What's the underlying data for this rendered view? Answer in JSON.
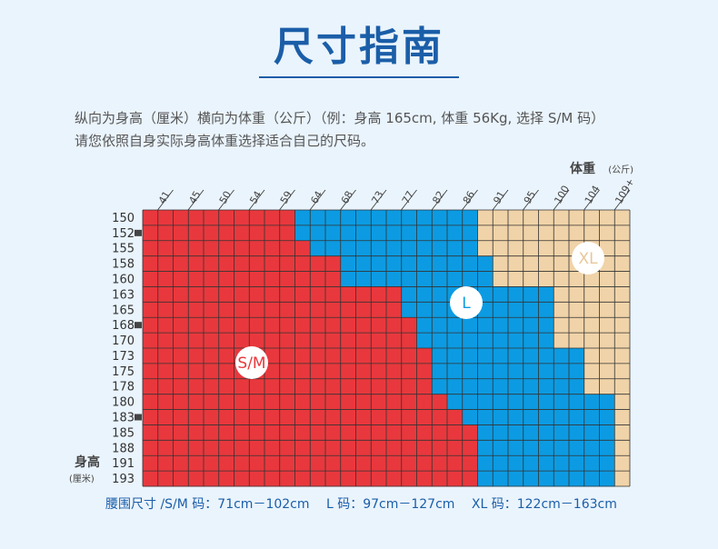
{
  "page": {
    "title": "尺寸指南",
    "desc_line1": "纵向为身高（厘米）横向为体重（公斤）（例：身高 165cm, 体重 56Kg, 选择 S/M 码）",
    "desc_line2": "请您依照自身实际身高体重选择适合自己的尺码。"
  },
  "chart_data": {
    "type": "heatmap",
    "x_axis_label": "体重",
    "x_axis_unit": "(公斤)",
    "y_axis_label": "身高",
    "y_axis_unit": "(厘米)",
    "x_ticks": [
      "41",
      "45",
      "50",
      "54",
      "59",
      "64",
      "68",
      "73",
      "77",
      "82",
      "86",
      "91",
      "95",
      "100",
      "104",
      "109+"
    ],
    "y_ticks": [
      "150",
      "152",
      "155",
      "158",
      "160",
      "163",
      "165",
      "168",
      "170",
      "173",
      "175",
      "178",
      "180",
      "183",
      "185",
      "188",
      "191",
      "193"
    ],
    "sizes": [
      {
        "label": "S/M",
        "color": "#e8383d"
      },
      {
        "label": "L",
        "color": "#0c9be2"
      },
      {
        "label": "XL",
        "color": "#f0d3a8"
      }
    ],
    "size_boundaries": {
      "description": "For each height row (150 → 193), number of grid columns (of 32) that are S/M, and cumulative columns through L; remaining columns are XL.",
      "sm_cols": [
        10,
        10,
        11,
        13,
        13,
        17,
        17,
        18,
        18,
        19,
        19,
        19,
        20,
        21,
        22,
        22,
        22,
        22
      ],
      "sm_plus_l_cols": [
        22,
        22,
        22,
        23,
        23,
        27,
        27,
        27,
        27,
        29,
        29,
        29,
        31,
        31,
        31,
        31,
        31,
        31
      ]
    }
  },
  "legend": {
    "waist": "腰围尺寸 /S/M 码：71cm－102cm",
    "l": "L 码：97cm－127cm",
    "xl": "XL 码：122cm－163cm"
  }
}
